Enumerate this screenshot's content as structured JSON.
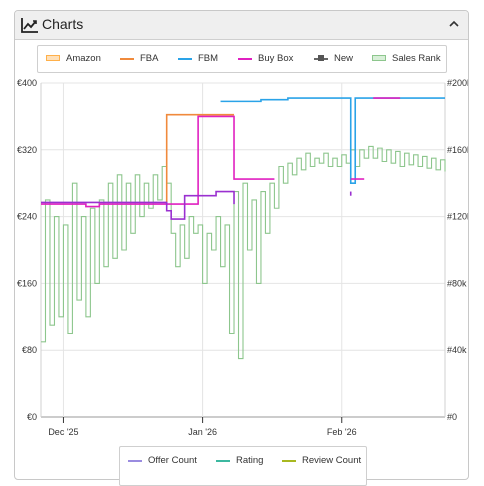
{
  "panel": {
    "title": "Charts",
    "icon": "line-chart-icon",
    "collapse_icon": "chevron-up-icon"
  },
  "legend": [
    {
      "label": "Amazon",
      "color": "#ffb04a",
      "style": "band"
    },
    {
      "label": "FBA",
      "color": "#f08a3c",
      "style": "line"
    },
    {
      "label": "FBM",
      "color": "#2aa3e8",
      "style": "line"
    },
    {
      "label": "Buy Box",
      "color": "#e020c0",
      "style": "line"
    },
    {
      "label": "New",
      "color": "#666666",
      "style": "marker"
    },
    {
      "label": "Sales Rank",
      "color": "#8dc68d",
      "style": "band"
    }
  ],
  "legend2": [
    {
      "label": "Offer Count",
      "color": "#9a8ce0"
    },
    {
      "label": "Rating",
      "color": "#3cb8a0"
    },
    {
      "label": "Review Count",
      "color": "#a8b820"
    }
  ],
  "chart_data": {
    "type": "line",
    "y_left": {
      "ticks": [
        "€0",
        "€80",
        "€160",
        "€240",
        "€320",
        "€400"
      ],
      "min": 0,
      "max": 400
    },
    "y_right": {
      "ticks": [
        "#0",
        "#40k",
        "#80k",
        "#120k",
        "#160k",
        "#200k"
      ],
      "min": 0,
      "max": 200000
    },
    "x": {
      "ticks": [
        "Dec '25",
        "Jan '26",
        "Feb '26"
      ],
      "tick_dates": [
        "2025-12-01",
        "2026-01-01",
        "2026-02-01"
      ],
      "min": "2025-11-26",
      "max": "2026-02-24"
    },
    "series": [
      {
        "name": "FBA",
        "axis": "left",
        "color": "#f08a3c",
        "points": [
          [
            "2025-12-24",
            255
          ],
          [
            "2025-12-24",
            362
          ],
          [
            "2026-01-08",
            362
          ],
          [
            "2026-01-08",
            362
          ]
        ]
      },
      {
        "name": "FBM",
        "axis": "left",
        "color": "#2aa3e8",
        "points": [
          [
            "2026-01-05",
            378
          ],
          [
            "2026-01-14",
            378
          ],
          [
            "2026-01-14",
            380
          ],
          [
            "2026-01-20",
            380
          ],
          [
            "2026-01-20",
            382
          ],
          [
            "2026-02-03",
            382
          ],
          [
            "2026-02-03",
            280
          ],
          [
            "2026-02-04",
            280
          ],
          [
            "2026-02-04",
            382
          ],
          [
            "2026-02-24",
            382
          ]
        ]
      },
      {
        "name": "Buy Box",
        "axis": "left",
        "color": "#e020c0",
        "points": [
          [
            "2025-11-26",
            255
          ],
          [
            "2025-12-06",
            255
          ],
          [
            "2025-12-06",
            252
          ],
          [
            "2025-12-09",
            252
          ],
          [
            "2025-12-09",
            255
          ],
          [
            "2025-12-24",
            255
          ],
          [
            "2025-12-24",
            255
          ],
          [
            "2025-12-31",
            255
          ],
          [
            "2025-12-31",
            360
          ],
          [
            "2026-01-08",
            360
          ],
          [
            "2026-01-08",
            285
          ],
          [
            "2026-01-17",
            285
          ],
          [
            "2026-01-17",
            285
          ]
        ]
      },
      {
        "name": "Buy Box (Feb)",
        "axis": "left",
        "color": "#e020c0",
        "points": [
          [
            "2026-02-03",
            285
          ],
          [
            "2026-02-06",
            285
          ]
        ]
      },
      {
        "name": "Buy Box (top)",
        "axis": "left",
        "color": "#e020c0",
        "points": [
          [
            "2026-02-08",
            382
          ],
          [
            "2026-02-14",
            382
          ]
        ]
      },
      {
        "name": "Purple",
        "axis": "left",
        "color": "#9a30d0",
        "points": [
          [
            "2025-11-26",
            257
          ],
          [
            "2025-12-24",
            257
          ],
          [
            "2025-12-24",
            247
          ],
          [
            "2025-12-25",
            247
          ],
          [
            "2025-12-25",
            237
          ],
          [
            "2025-12-28",
            237
          ],
          [
            "2025-12-28",
            265
          ],
          [
            "2026-01-04",
            265
          ],
          [
            "2026-01-04",
            270
          ],
          [
            "2026-01-08",
            270
          ],
          [
            "2026-01-08",
            255
          ]
        ]
      },
      {
        "name": "Purple (Feb)",
        "axis": "left",
        "color": "#9a30d0",
        "points": [
          [
            "2026-02-03",
            270
          ],
          [
            "2026-02-03",
            265
          ]
        ]
      }
    ],
    "sales_rank": {
      "axis": "right",
      "color": "#8dc68d",
      "points": [
        [
          "2025-11-26",
          45000
        ],
        [
          "2025-11-27",
          130000
        ],
        [
          "2025-11-28",
          55000
        ],
        [
          "2025-11-29",
          120000
        ],
        [
          "2025-11-30",
          60000
        ],
        [
          "2025-12-01",
          115000
        ],
        [
          "2025-12-02",
          50000
        ],
        [
          "2025-12-03",
          140000
        ],
        [
          "2025-12-04",
          70000
        ],
        [
          "2025-12-05",
          120000
        ],
        [
          "2025-12-06",
          60000
        ],
        [
          "2025-12-07",
          125000
        ],
        [
          "2025-12-08",
          80000
        ],
        [
          "2025-12-09",
          130000
        ],
        [
          "2025-12-10",
          90000
        ],
        [
          "2025-12-11",
          140000
        ],
        [
          "2025-12-12",
          95000
        ],
        [
          "2025-12-13",
          145000
        ],
        [
          "2025-12-14",
          100000
        ],
        [
          "2025-12-15",
          140000
        ],
        [
          "2025-12-16",
          110000
        ],
        [
          "2025-12-17",
          145000
        ],
        [
          "2025-12-18",
          120000
        ],
        [
          "2025-12-19",
          140000
        ],
        [
          "2025-12-20",
          125000
        ],
        [
          "2025-12-21",
          145000
        ],
        [
          "2025-12-22",
          130000
        ],
        [
          "2025-12-23",
          150000
        ],
        [
          "2025-12-24",
          140000
        ],
        [
          "2025-12-25",
          110000
        ],
        [
          "2025-12-26",
          90000
        ],
        [
          "2025-12-27",
          115000
        ],
        [
          "2025-12-28",
          95000
        ],
        [
          "2025-12-29",
          120000
        ],
        [
          "2025-12-30",
          110000
        ],
        [
          "2025-12-31",
          115000
        ],
        [
          "2026-01-01",
          80000
        ],
        [
          "2026-01-02",
          110000
        ],
        [
          "2026-01-03",
          100000
        ],
        [
          "2026-01-04",
          120000
        ],
        [
          "2026-01-05",
          90000
        ],
        [
          "2026-01-06",
          115000
        ],
        [
          "2026-01-07",
          50000
        ],
        [
          "2026-01-08",
          135000
        ],
        [
          "2026-01-09",
          35000
        ],
        [
          "2026-01-10",
          140000
        ],
        [
          "2026-01-11",
          100000
        ],
        [
          "2026-01-12",
          130000
        ],
        [
          "2026-01-13",
          80000
        ],
        [
          "2026-01-14",
          135000
        ],
        [
          "2026-01-15",
          110000
        ],
        [
          "2026-01-16",
          140000
        ],
        [
          "2026-01-17",
          125000
        ],
        [
          "2026-01-18",
          150000
        ],
        [
          "2026-01-19",
          140000
        ],
        [
          "2026-01-20",
          152000
        ],
        [
          "2026-01-21",
          145000
        ],
        [
          "2026-01-22",
          155000
        ],
        [
          "2026-01-23",
          148000
        ],
        [
          "2026-01-24",
          158000
        ],
        [
          "2026-01-25",
          150000
        ],
        [
          "2026-01-26",
          155000
        ],
        [
          "2026-01-27",
          152000
        ],
        [
          "2026-01-28",
          158000
        ],
        [
          "2026-01-29",
          150000
        ],
        [
          "2026-01-30",
          155000
        ],
        [
          "2026-01-31",
          150000
        ],
        [
          "2026-02-01",
          157000
        ],
        [
          "2026-02-02",
          152000
        ],
        [
          "2026-02-03",
          160000
        ],
        [
          "2026-02-04",
          150000
        ],
        [
          "2026-02-05",
          160000
        ],
        [
          "2026-02-06",
          155000
        ],
        [
          "2026-02-07",
          162000
        ],
        [
          "2026-02-08",
          155000
        ],
        [
          "2026-02-09",
          161000
        ],
        [
          "2026-02-10",
          153000
        ],
        [
          "2026-02-11",
          160000
        ],
        [
          "2026-02-12",
          152000
        ],
        [
          "2026-02-13",
          159000
        ],
        [
          "2026-02-14",
          150000
        ],
        [
          "2026-02-15",
          158000
        ],
        [
          "2026-02-16",
          151000
        ],
        [
          "2026-02-17",
          157000
        ],
        [
          "2026-02-18",
          150000
        ],
        [
          "2026-02-19",
          156000
        ],
        [
          "2026-02-20",
          149000
        ],
        [
          "2026-02-21",
          155000
        ],
        [
          "2026-02-22",
          148000
        ],
        [
          "2026-02-23",
          154000
        ],
        [
          "2026-02-24",
          147000
        ]
      ]
    },
    "grid": true
  }
}
